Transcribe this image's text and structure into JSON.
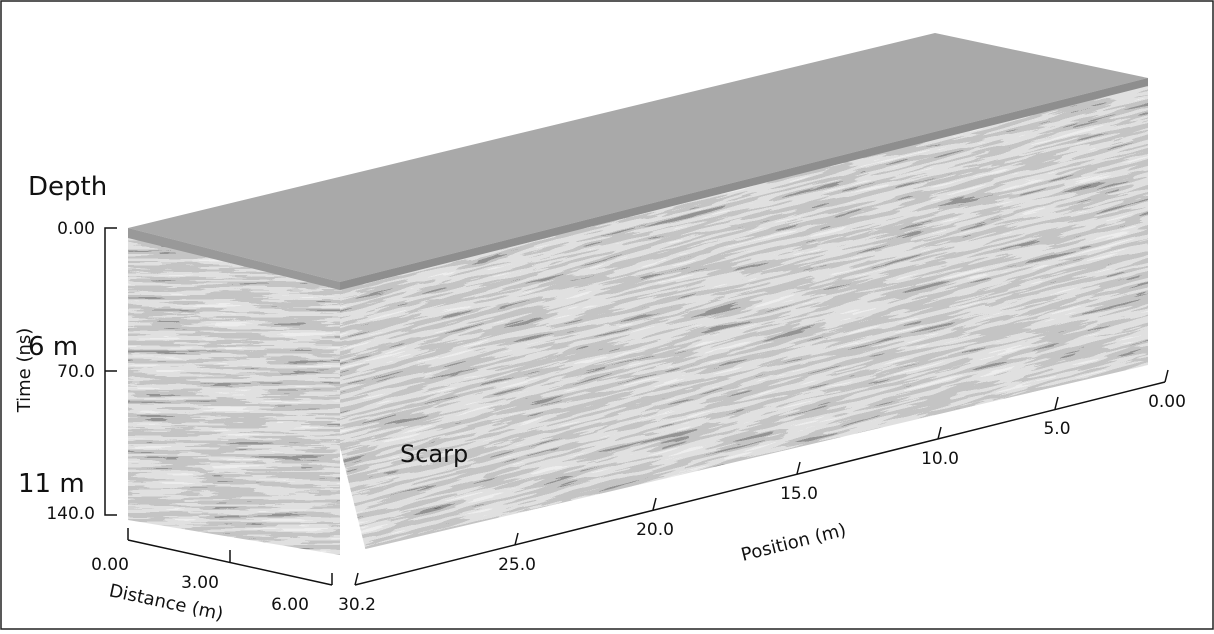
{
  "depth_label": "Depth",
  "time_axis": {
    "title": "Time (ns)",
    "ticks": [
      "0.00",
      "70.0",
      "140.0"
    ],
    "depth_marks": [
      "6 m",
      "11 m"
    ]
  },
  "distance_axis": {
    "title": "Distance (m)",
    "ticks": [
      "0.00",
      "3.00",
      "6.00"
    ]
  },
  "position_axis": {
    "title": "Position (m)",
    "ticks": [
      "30.2",
      "25.0",
      "20.0",
      "15.0",
      "10.0",
      "5.0",
      "0.00"
    ]
  },
  "annotation": "Scarp"
}
